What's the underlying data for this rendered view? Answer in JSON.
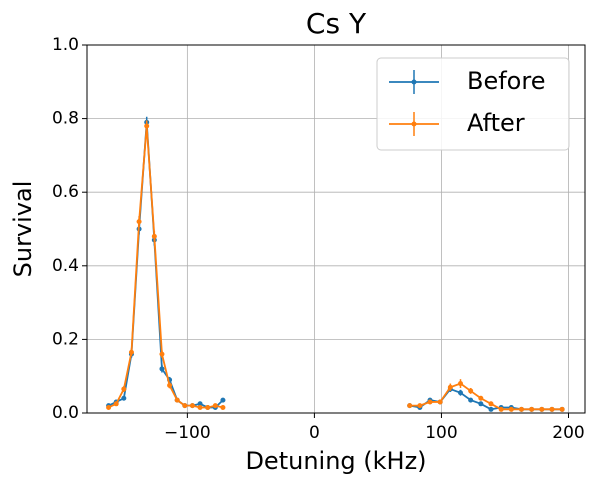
{
  "chart_data": {
    "type": "line",
    "title": "Cs Y",
    "xlabel": "Detuning (kHz)",
    "ylabel": "Survival",
    "x": [
      -162,
      -156,
      -150,
      -144,
      -138,
      -132,
      -126,
      -120,
      -114,
      -108,
      -102,
      -96,
      -90,
      -84,
      -78,
      -72,
      null,
      75,
      83,
      91,
      99,
      107,
      115,
      123,
      131,
      139,
      147,
      155,
      163,
      171,
      179,
      187,
      195
    ],
    "series": [
      {
        "name": "Before",
        "color": "#1f77b4",
        "values": [
          0.02,
          0.03,
          0.04,
          0.16,
          0.5,
          0.79,
          0.47,
          0.12,
          0.09,
          0.035,
          0.02,
          0.02,
          0.025,
          0.015,
          0.015,
          0.035,
          null,
          0.02,
          0.015,
          0.035,
          0.03,
          0.065,
          0.055,
          0.035,
          0.025,
          0.01,
          0.015,
          0.015,
          0.01,
          0.01,
          0.01,
          0.01,
          0.01
        ],
        "errors": [
          0.005,
          0.005,
          0.006,
          0.01,
          0.015,
          0.015,
          0.015,
          0.01,
          0.008,
          0.005,
          0.005,
          0.005,
          0.005,
          0.004,
          0.004,
          0.005,
          null,
          0.005,
          0.004,
          0.005,
          0.005,
          0.008,
          0.008,
          0.006,
          0.005,
          0.004,
          0.004,
          0.004,
          0.003,
          0.003,
          0.003,
          0.003,
          0.003
        ]
      },
      {
        "name": "After",
        "color": "#ff7f0e",
        "values": [
          0.015,
          0.025,
          0.065,
          0.165,
          0.52,
          0.78,
          0.48,
          0.16,
          0.075,
          0.035,
          0.02,
          0.02,
          0.015,
          0.015,
          0.02,
          0.015,
          null,
          0.02,
          0.02,
          0.03,
          0.03,
          0.07,
          0.08,
          0.06,
          0.04,
          0.025,
          0.01,
          0.01,
          0.01,
          0.01,
          0.01,
          0.01,
          0.01
        ],
        "errors": [
          0.004,
          0.005,
          0.008,
          0.01,
          0.015,
          0.015,
          0.015,
          0.01,
          0.008,
          0.005,
          0.005,
          0.005,
          0.004,
          0.004,
          0.005,
          0.004,
          null,
          0.005,
          0.005,
          0.005,
          0.005,
          0.01,
          0.012,
          0.008,
          0.006,
          0.005,
          0.004,
          0.003,
          0.003,
          0.003,
          0.003,
          0.003,
          0.003
        ]
      }
    ],
    "xlim": [
      -179,
      213
    ],
    "ylim": [
      0,
      1
    ],
    "xticks": [
      {
        "value": -100,
        "label": "−100"
      },
      0,
      100,
      200
    ],
    "yticks": [
      {
        "value": 0,
        "label": "0.0"
      },
      {
        "value": 0.2,
        "label": "0.2"
      },
      {
        "value": 0.4,
        "label": "0.4"
      },
      {
        "value": 0.6,
        "label": "0.6"
      },
      {
        "value": 0.8,
        "label": "0.8"
      },
      {
        "value": 1,
        "label": "1.0"
      }
    ],
    "grid": true,
    "legend": "upper right"
  }
}
